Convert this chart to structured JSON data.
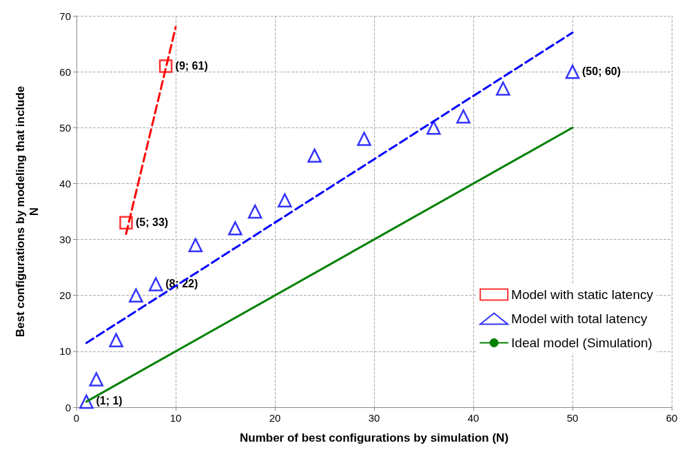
{
  "chart_data": {
    "type": "scatter",
    "xlabel": "Number of best configurations by simulation (N)",
    "ylabel": "Best configurations by modeling that include\nN",
    "xlim": [
      0,
      60
    ],
    "xticks": [
      0,
      10,
      20,
      30,
      40,
      50,
      60
    ],
    "ylim": [
      0,
      70
    ],
    "yticks": [
      0,
      10,
      20,
      30,
      40,
      50,
      60,
      70
    ],
    "grid": true,
    "legend": "right",
    "series": [
      {
        "name": "Model with static latency",
        "color": "#ff0000",
        "marker": "square",
        "x": [
          5,
          9
        ],
        "values": [
          33,
          61
        ]
      },
      {
        "name": "Model with total latency",
        "color": "#0000ff",
        "marker": "triangle",
        "x": [
          1,
          2,
          4,
          6,
          8,
          12,
          16,
          18,
          21,
          24,
          29,
          36,
          39,
          43,
          50
        ],
        "values": [
          1,
          5,
          12,
          20,
          22,
          29,
          32,
          35,
          37,
          45,
          48,
          50,
          52,
          57,
          60
        ]
      },
      {
        "name": "Ideal model (Simulation)",
        "type": "line",
        "color": "#008000",
        "marker": "none",
        "line_style": "solid",
        "x": [
          1,
          50
        ],
        "values": [
          1,
          50
        ]
      },
      {
        "type": "line",
        "color": "#ff0000",
        "marker": "none",
        "line_style": "dashed",
        "x": [
          5,
          10
        ],
        "values": [
          31,
          68
        ]
      },
      {
        "type": "line",
        "color": "#0000ff",
        "marker": "none",
        "line_style": "dashed",
        "x": [
          1,
          50
        ],
        "values": [
          11.5,
          67
        ]
      }
    ],
    "annotations": [
      {
        "text": "(9; 61)",
        "x": 9,
        "y": 61
      },
      {
        "text": "(5; 33)",
        "x": 5,
        "y": 33
      },
      {
        "text": "(8; 22)",
        "x": 8,
        "y": 22
      },
      {
        "text": "(1; 1)",
        "x": 1,
        "y": 1
      },
      {
        "text": "(50; 60)",
        "x": 50,
        "y": 60
      }
    ]
  }
}
